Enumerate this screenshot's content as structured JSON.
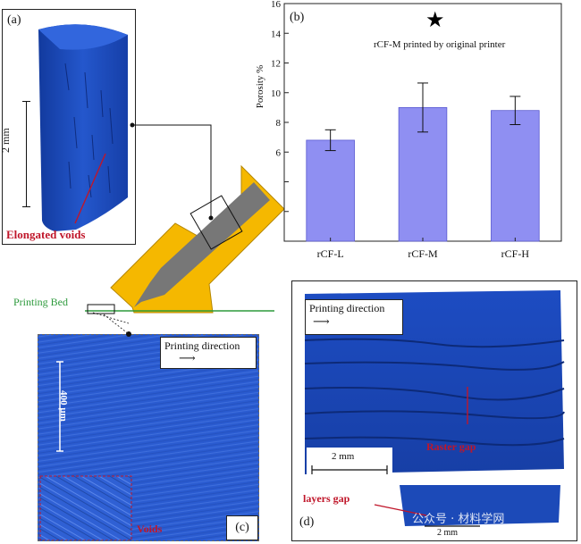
{
  "panel_a": {
    "label": "(a)",
    "scale_label": "2 mm",
    "annotation": "Elongated voids"
  },
  "panel_b": {
    "label": "(b)",
    "star_glyph": "★",
    "star_note": "rCF-M printed by original printer"
  },
  "nozzle": {
    "bed_label": "Printing Bed"
  },
  "panel_c": {
    "label": "(c)",
    "direction_label": "Printing direction",
    "scale_label": "400 µm",
    "voids_label": "Voids"
  },
  "panel_d": {
    "label": "(d)",
    "direction_label": "Printing direction",
    "raster_gap_label": "Raster gap",
    "scale_label": "2 mm",
    "layers_gap_label": "layers gap",
    "scale_label_bottom": "2 mm",
    "watermark": "公众号 · 材料学网"
  },
  "chart_data": {
    "type": "bar",
    "categories": [
      "rCF-L",
      "rCF-M",
      "rCF-H"
    ],
    "values": [
      6.8,
      9.0,
      8.8
    ],
    "errors": [
      0.7,
      1.65,
      0.95
    ],
    "ylabel": "Porosity %",
    "ylim": [
      0,
      16
    ],
    "yticks": [
      2,
      4,
      6,
      8,
      10,
      12,
      14,
      16
    ],
    "ytick_labels": [
      "",
      "",
      "6",
      "8",
      "10",
      "12",
      "14",
      "16"
    ],
    "bar_color": "#8f8ff2",
    "grid": false
  },
  "colors": {
    "scan_blue": "#1b47b8",
    "nozzle_yellow": "#f5b800",
    "nozzle_gray": "#777777",
    "bed_green": "#2d9a3c",
    "annotation_red": "#c0162a"
  }
}
